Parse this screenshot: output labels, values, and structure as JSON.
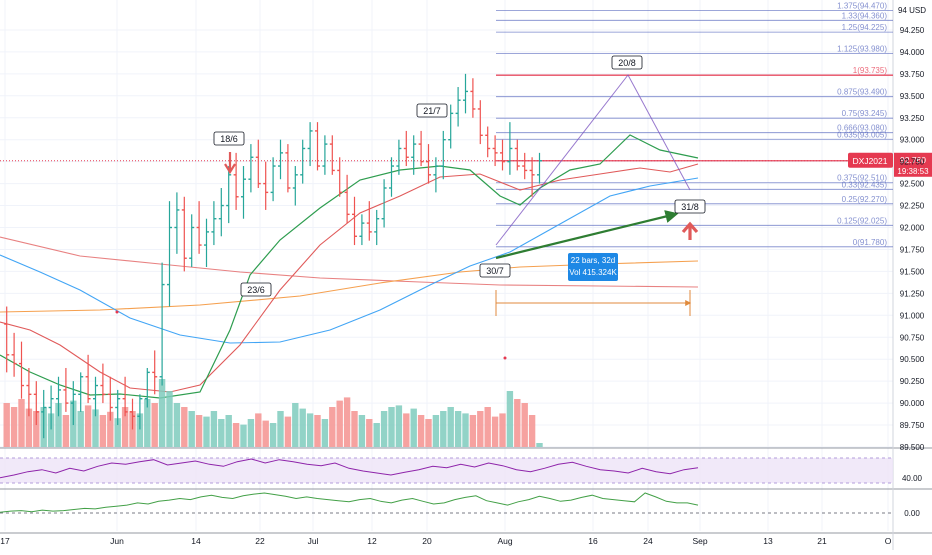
{
  "chart_data": {
    "type": "candlestick",
    "symbol": "DXJ2021",
    "currency": "USD",
    "last_price": "92.760",
    "countdown": "19:38:53",
    "price_axis": {
      "range": [
        89.5,
        94.5
      ],
      "ticks": [
        "94.250",
        "94.000",
        "93.750",
        "93.500",
        "93.250",
        "93.000",
        "92.750",
        "92.500",
        "92.250",
        "92.000",
        "91.750",
        "91.500",
        "91.250",
        "91.000",
        "90.750",
        "90.500",
        "90.250",
        "90.000",
        "89.750",
        "89.500"
      ]
    },
    "time_axis": {
      "labels": [
        "17",
        "Jun",
        "14",
        "22",
        "Jul",
        "12",
        "20",
        "Aug",
        "16",
        "24",
        "Sep",
        "13",
        "21",
        "O"
      ]
    },
    "fib_levels": [
      {
        "ratio": "1.375",
        "price": "94.470"
      },
      {
        "ratio": "1.33",
        "price": "94.360"
      },
      {
        "ratio": "1.25",
        "price": "94.225"
      },
      {
        "ratio": "1.125",
        "price": "93.980"
      },
      {
        "ratio": "1",
        "price": "93.735"
      },
      {
        "ratio": "0.875",
        "price": "93.490"
      },
      {
        "ratio": "0.75",
        "price": "93.245"
      },
      {
        "ratio": "0.666",
        "price": "93.080"
      },
      {
        "ratio": "0.635",
        "price": "93.005"
      },
      {
        "ratio": "0",
        "price": "92.760"
      },
      {
        "ratio": "0.375",
        "price": "92.510"
      },
      {
        "ratio": "0.33",
        "price": "92.435"
      },
      {
        "ratio": "0.25",
        "price": "92.270"
      },
      {
        "ratio": "0.125",
        "price": "92.025"
      },
      {
        "ratio": "0",
        "price": "91.780"
      }
    ],
    "date_labels": [
      "18/6",
      "23/6",
      "21/7",
      "30/7",
      "20/8",
      "31/8"
    ],
    "measure_box": {
      "line1": "22 bars, 32d",
      "line2": "Vol 415.324K"
    },
    "rsi": {
      "level_label": "40.00",
      "range": [
        0,
        100
      ]
    },
    "osc": {
      "level_label": "0.00"
    },
    "candles": [
      [
        90.9,
        91.1,
        90.35,
        90.55
      ],
      [
        90.55,
        90.8,
        90.3,
        90.45
      ],
      [
        90.45,
        90.7,
        90.05,
        90.2
      ],
      [
        90.2,
        90.4,
        89.85,
        90.1
      ],
      [
        90.1,
        90.25,
        89.75,
        89.9
      ],
      [
        89.9,
        90.15,
        89.6,
        89.95
      ],
      [
        89.95,
        90.2,
        89.7,
        90.05
      ],
      [
        90.05,
        90.3,
        89.85,
        90.15
      ],
      [
        90.15,
        90.4,
        89.9,
        90.0
      ],
      [
        90.0,
        90.25,
        89.75,
        90.1
      ],
      [
        90.1,
        90.35,
        89.9,
        90.3
      ],
      [
        90.3,
        90.55,
        90.0,
        90.05
      ],
      [
        90.05,
        90.3,
        89.85,
        90.2
      ],
      [
        90.2,
        90.45,
        90.0,
        90.1
      ],
      [
        90.1,
        90.3,
        89.8,
        89.95
      ],
      [
        89.95,
        90.15,
        89.75,
        90.05
      ],
      [
        90.05,
        90.3,
        89.85,
        89.9
      ],
      [
        89.9,
        90.05,
        89.7,
        89.85
      ],
      [
        89.85,
        90.1,
        89.7,
        90.05
      ],
      [
        90.05,
        90.4,
        89.95,
        90.35
      ],
      [
        90.35,
        90.6,
        90.1,
        90.3
      ],
      [
        90.3,
        91.6,
        90.2,
        91.35
      ],
      [
        91.35,
        92.3,
        91.1,
        92.0
      ],
      [
        92.0,
        92.4,
        91.7,
        92.2
      ],
      [
        92.2,
        92.35,
        91.5,
        91.65
      ],
      [
        91.65,
        92.15,
        91.55,
        92.0
      ],
      [
        92.0,
        92.3,
        91.7,
        91.8
      ],
      [
        91.8,
        92.1,
        91.55,
        91.95
      ],
      [
        91.95,
        92.3,
        91.8,
        92.1
      ],
      [
        92.1,
        92.45,
        91.9,
        92.25
      ],
      [
        92.25,
        92.7,
        92.05,
        92.6
      ],
      [
        92.6,
        92.85,
        92.2,
        92.35
      ],
      [
        92.35,
        92.7,
        92.1,
        92.55
      ],
      [
        92.55,
        92.95,
        92.4,
        92.8
      ],
      [
        92.8,
        93.0,
        92.45,
        92.5
      ],
      [
        92.5,
        92.75,
        92.2,
        92.4
      ],
      [
        92.4,
        92.8,
        92.3,
        92.7
      ],
      [
        92.7,
        93.0,
        92.55,
        92.85
      ],
      [
        92.85,
        92.95,
        92.4,
        92.45
      ],
      [
        92.45,
        92.7,
        92.25,
        92.6
      ],
      [
        92.6,
        93.0,
        92.5,
        92.9
      ],
      [
        92.9,
        93.2,
        92.7,
        93.1
      ],
      [
        93.1,
        93.2,
        92.65,
        92.7
      ],
      [
        92.7,
        93.05,
        92.6,
        92.95
      ],
      [
        92.95,
        93.05,
        92.6,
        92.65
      ],
      [
        92.65,
        92.8,
        92.35,
        92.4
      ],
      [
        92.4,
        92.6,
        92.05,
        92.15
      ],
      [
        92.15,
        92.35,
        91.8,
        91.9
      ],
      [
        91.9,
        92.15,
        91.8,
        92.05
      ],
      [
        92.05,
        92.3,
        91.85,
        91.95
      ],
      [
        91.95,
        92.2,
        91.8,
        92.1
      ],
      [
        92.1,
        92.55,
        92.0,
        92.45
      ],
      [
        92.45,
        92.8,
        92.35,
        92.7
      ],
      [
        92.7,
        93.0,
        92.6,
        92.9
      ],
      [
        92.9,
        93.1,
        92.7,
        92.8
      ],
      [
        92.8,
        93.05,
        92.6,
        92.95
      ],
      [
        92.95,
        93.1,
        92.7,
        92.75
      ],
      [
        92.75,
        92.95,
        92.5,
        92.6
      ],
      [
        92.6,
        92.8,
        92.4,
        92.7
      ],
      [
        92.7,
        93.1,
        92.55,
        93.0
      ],
      [
        93.0,
        93.4,
        92.9,
        93.3
      ],
      [
        93.3,
        93.6,
        93.15,
        93.45
      ],
      [
        93.45,
        93.75,
        93.3,
        93.55
      ],
      [
        93.55,
        93.7,
        93.25,
        93.35
      ],
      [
        93.35,
        93.45,
        92.95,
        93.05
      ],
      [
        93.05,
        93.15,
        92.8,
        92.9
      ],
      [
        92.9,
        93.05,
        92.7,
        92.85
      ],
      [
        92.85,
        93.0,
        92.65,
        92.75
      ],
      [
        92.75,
        93.2,
        92.6,
        92.9
      ],
      [
        92.9,
        93.0,
        92.65,
        92.7
      ],
      [
        92.7,
        92.85,
        92.55,
        92.65
      ],
      [
        92.65,
        92.8,
        92.35,
        92.6
      ],
      [
        92.6,
        92.85,
        92.5,
        92.76
      ]
    ],
    "volumes": [
      0.55,
      0.5,
      0.6,
      0.48,
      0.45,
      0.5,
      0.42,
      0.55,
      0.4,
      0.58,
      0.45,
      0.52,
      0.47,
      0.4,
      0.44,
      0.36,
      0.5,
      0.45,
      0.42,
      0.6,
      0.55,
      0.85,
      0.7,
      0.55,
      0.5,
      0.45,
      0.4,
      0.38,
      0.45,
      0.35,
      0.4,
      0.3,
      0.28,
      0.35,
      0.42,
      0.33,
      0.3,
      0.45,
      0.38,
      0.55,
      0.48,
      0.42,
      0.4,
      0.35,
      0.5,
      0.58,
      0.62,
      0.45,
      0.4,
      0.35,
      0.3,
      0.45,
      0.5,
      0.52,
      0.42,
      0.48,
      0.4,
      0.35,
      0.4,
      0.45,
      0.5,
      0.45,
      0.42,
      0.4,
      0.45,
      0.5,
      0.38,
      0.42,
      0.7,
      0.6,
      0.55,
      0.4,
      0.05
    ],
    "rsi_values": [
      38,
      42,
      47,
      50,
      45,
      52,
      48,
      55,
      60,
      58,
      62,
      65,
      57,
      60,
      63,
      58,
      55,
      62,
      66,
      60,
      65,
      62,
      58,
      56,
      60,
      52,
      48,
      45,
      42,
      46,
      50,
      55,
      53,
      58,
      54,
      60,
      56,
      50,
      47,
      52,
      58,
      61,
      55,
      50,
      48,
      45,
      52,
      47,
      44,
      50,
      53
    ],
    "osc_values": [
      5,
      7,
      8,
      6,
      9,
      7,
      8,
      10,
      12,
      11,
      14,
      16,
      18,
      22,
      20,
      25,
      27,
      30,
      28,
      33,
      36,
      32,
      30,
      35,
      38,
      40,
      37,
      34,
      30,
      33,
      30,
      28,
      26,
      24,
      28,
      30,
      25,
      22,
      27,
      30,
      25,
      20,
      22,
      28,
      32,
      35,
      26,
      22,
      18,
      24,
      28,
      34,
      30,
      25,
      27,
      32,
      36,
      30,
      28,
      26,
      24,
      40,
      33,
      25,
      22,
      22,
      18
    ]
  }
}
